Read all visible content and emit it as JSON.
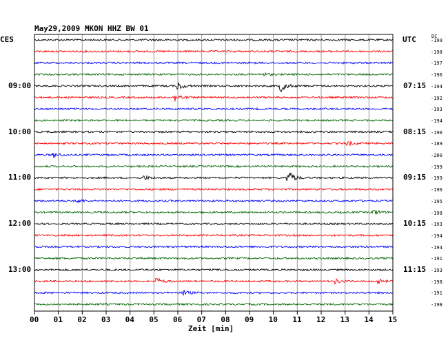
{
  "header": {
    "title": "May29,2009   MKON HHZ BW 01",
    "left_tz": "CES",
    "right_tz": "UTC",
    "dc_label": "DC"
  },
  "chart_data": {
    "type": "seismogram-helicorder",
    "title": "May29,2009   MKON HHZ BW 01",
    "xlabel": "Zeit [min]",
    "xlim": [
      0,
      15
    ],
    "x_ticks": [
      "00",
      "01",
      "02",
      "03",
      "04",
      "05",
      "06",
      "07",
      "08",
      "09",
      "10",
      "11",
      "12",
      "13",
      "14",
      "15"
    ],
    "trace_colors": [
      "#000000",
      "#ff0000",
      "#0000ff",
      "#006600"
    ],
    "n_traces": 24,
    "left_time_labels": [
      {
        "trace": 4,
        "text": "09:00"
      },
      {
        "trace": 8,
        "text": "10:00"
      },
      {
        "trace": 12,
        "text": "11:00"
      },
      {
        "trace": 16,
        "text": "12:00"
      },
      {
        "trace": 20,
        "text": "13:00"
      }
    ],
    "right_time_labels": [
      {
        "trace": 4,
        "text": "07:15"
      },
      {
        "trace": 8,
        "text": "08:15"
      },
      {
        "trace": 12,
        "text": "09:15"
      },
      {
        "trace": 16,
        "text": "10:15"
      },
      {
        "trace": 20,
        "text": "11:15"
      }
    ],
    "dc_offsets": [
      "-199",
      "-198",
      "-197",
      "-196",
      "-194",
      "-192",
      "-193",
      "-194",
      "-190",
      "-189",
      "-200",
      "-199",
      "-199",
      "-196",
      "-195",
      "-198",
      "-193",
      "-194",
      "-194",
      "-191",
      "-193",
      "-198",
      "-191",
      "-198"
    ],
    "events": [
      {
        "trace": 4,
        "minute": 6.0,
        "amp": 6
      },
      {
        "trace": 4,
        "minute": 10.3,
        "amp": 9
      },
      {
        "trace": 5,
        "minute": 5.9,
        "amp": 6
      },
      {
        "trace": 3,
        "minute": 9.5,
        "amp": 3
      },
      {
        "trace": 10,
        "minute": 0.8,
        "amp": 4
      },
      {
        "trace": 12,
        "minute": 10.6,
        "amp": 12
      },
      {
        "trace": 12,
        "minute": 4.6,
        "amp": 3
      },
      {
        "trace": 14,
        "minute": 1.8,
        "amp": 3
      },
      {
        "trace": 15,
        "minute": 14.2,
        "amp": 4
      },
      {
        "trace": 21,
        "minute": 5.1,
        "amp": 5
      },
      {
        "trace": 21,
        "minute": 12.6,
        "amp": 3
      },
      {
        "trace": 21,
        "minute": 14.4,
        "amp": 4
      },
      {
        "trace": 22,
        "minute": 6.2,
        "amp": 4
      },
      {
        "trace": 9,
        "minute": 13.1,
        "amp": 3
      }
    ]
  }
}
